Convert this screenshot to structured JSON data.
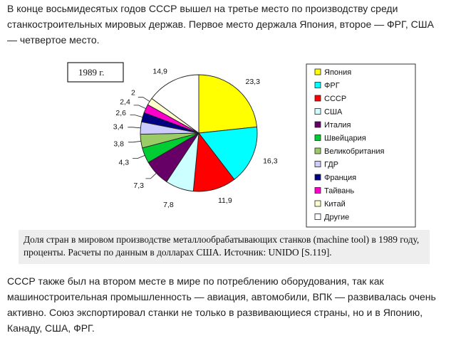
{
  "intro_text": "В конце восьмидесятых годов СССР вышел на третье место по производству среди станкостроительных мировых держав. Первое место держала Япония, второе — ФРГ, США — четвертое место.",
  "caption": "Доля стран в мировом производстве металлообрабатывающих  станков  (machine tool) в 1989 году, проценты.  Расчеты по данным в долларах США. Источник: UNIDO [S.119].",
  "outro_text": "СССР также был на втором месте в мире по потреблению оборудования, так как машиностроительная промышленность — авиация, автомобили, ВПК — развивалась очень активно. Союз экспортировал станки не только в развивающиеся страны, но и в Японию, Канаду, США, ФРГ.",
  "chart_data": {
    "type": "pie",
    "title": "1989 г.",
    "legend_position": "right",
    "slices": [
      {
        "name": "Япония",
        "value": 23.3,
        "label": "23,3",
        "color": "#ffff00"
      },
      {
        "name": "ФРГ",
        "value": 16.3,
        "label": "16,3",
        "color": "#00ffff"
      },
      {
        "name": "СССР",
        "value": 11.9,
        "label": "11,9",
        "color": "#ff0000"
      },
      {
        "name": "США",
        "value": 7.8,
        "label": "7,8",
        "color": "#ccffff"
      },
      {
        "name": "Италия",
        "value": 7.3,
        "label": "7,3",
        "color": "#660066"
      },
      {
        "name": "Швейцария",
        "value": 4.3,
        "label": "4,3",
        "color": "#00cc33"
      },
      {
        "name": "Великобритания",
        "value": 3.8,
        "label": "3,8",
        "color": "#99cc66"
      },
      {
        "name": "ГДР",
        "value": 3.4,
        "label": "3,4",
        "color": "#ccccff"
      },
      {
        "name": "Франция",
        "value": 2.6,
        "label": "2,6",
        "color": "#000080"
      },
      {
        "name": "Тайвань",
        "value": 2.4,
        "label": "2,4",
        "color": "#ff00cc"
      },
      {
        "name": "Китай",
        "value": 2.0,
        "label": "2",
        "color": "#ffffcc"
      },
      {
        "name": "Другие",
        "value": 14.9,
        "label": "14,9",
        "color": "#ffffff"
      }
    ]
  }
}
